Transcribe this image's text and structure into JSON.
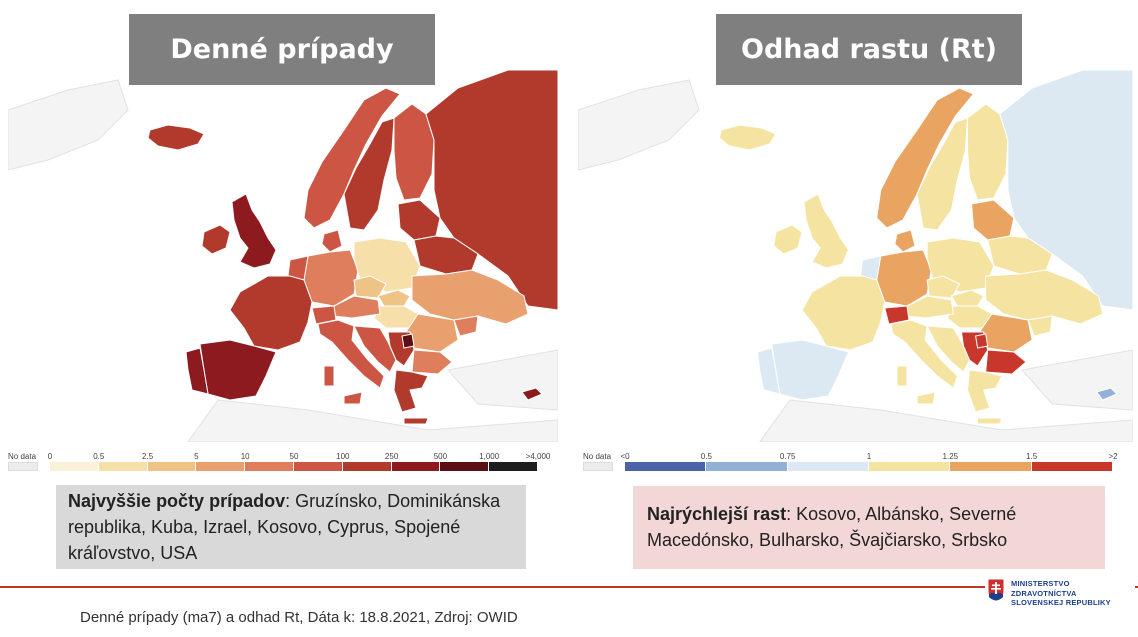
{
  "panels": {
    "left_title": "Denné prípady",
    "right_title": "Odhad rastu (Rt)"
  },
  "colors": {
    "no_data": "#ececec",
    "border": "#ffffff",
    "background_land": "#f4f4f4",
    "daily_cases_scale": [
      "#fbf1d9",
      "#f6dfa9",
      "#efc285",
      "#e7a06e",
      "#de7e5d",
      "#cc5643",
      "#b23a2c",
      "#8c1a1f",
      "#5c0f13",
      "#1e1e1e"
    ],
    "rt_scale": [
      "#4c63a8",
      "#93b0d6",
      "#dce9f3",
      "#f5e4a1",
      "#e9a462",
      "#c9362c"
    ]
  },
  "legend_left": {
    "no_data": "No data",
    "ticks": [
      "0",
      "0.5",
      "2.5",
      "5",
      "10",
      "50",
      "100",
      "250",
      "500",
      "1,000",
      ">4,000"
    ]
  },
  "legend_right": {
    "no_data": "No data",
    "ticks": [
      "<0",
      "0.5",
      "0.75",
      "1",
      "1.25",
      "1.5",
      ">2"
    ]
  },
  "callout_left": {
    "label": "Najvyššie počty prípadov",
    "text": ": Gruzínsko, Dominikánska republika, Kuba, Izrael, Kosovo, Cyprus, Spojené kráľovstvo, USA"
  },
  "callout_right": {
    "label": "Najrýchlejší rast",
    "text": ": Kosovo, Albánsko, Severné Macedónsko, Bulharsko, Švajčiarsko, Srbsko"
  },
  "footer": {
    "text": "Denné prípady (ma7) a odhad Rt, Dáta k: 18.8.2021, Zdroj: OWID"
  },
  "logo": {
    "line1": "MINISTERSTVO",
    "line2": "ZDRAVOTNÍCTVA",
    "line3": "SLOVENSKEJ REPUBLIKY"
  },
  "map_left_regions": [
    {
      "name": "Iceland",
      "color": "#b23a2c"
    },
    {
      "name": "Ireland",
      "color": "#b23a2c"
    },
    {
      "name": "United Kingdom",
      "color": "#8c1a1f"
    },
    {
      "name": "Norway",
      "color": "#cc5643"
    },
    {
      "name": "Sweden",
      "color": "#b23a2c"
    },
    {
      "name": "Finland",
      "color": "#cc5643"
    },
    {
      "name": "Russia",
      "color": "#b23a2c"
    },
    {
      "name": "Baltics",
      "color": "#b23a2c"
    },
    {
      "name": "Belarus",
      "color": "#b23a2c"
    },
    {
      "name": "Denmark",
      "color": "#cc5643"
    },
    {
      "name": "Germany",
      "color": "#de7e5d"
    },
    {
      "name": "Netherlands",
      "color": "#cc5643"
    },
    {
      "name": "France",
      "color": "#b23a2c"
    },
    {
      "name": "Spain",
      "color": "#8c1a1f"
    },
    {
      "name": "Portugal",
      "color": "#8c1a1f"
    },
    {
      "name": "Poland",
      "color": "#f6dfa9"
    },
    {
      "name": "Czechia",
      "color": "#efc285"
    },
    {
      "name": "Slovakia",
      "color": "#efc285"
    },
    {
      "name": "Hungary",
      "color": "#f6dfa9"
    },
    {
      "name": "Ukraine",
      "color": "#e7a06e"
    },
    {
      "name": "Romania",
      "color": "#e7a06e"
    },
    {
      "name": "Moldova",
      "color": "#de7e5d"
    },
    {
      "name": "Austria",
      "color": "#de7e5d"
    },
    {
      "name": "Switzerland",
      "color": "#cc5643"
    },
    {
      "name": "Italy",
      "color": "#cc5643"
    },
    {
      "name": "Balkans",
      "color": "#cc5643"
    },
    {
      "name": "Serbia",
      "color": "#b23a2c"
    },
    {
      "name": "Kosovo",
      "color": "#5c0f13"
    },
    {
      "name": "Bulgaria",
      "color": "#de7e5d"
    },
    {
      "name": "Greece",
      "color": "#b23a2c"
    },
    {
      "name": "Cyprus",
      "color": "#8c1a1f"
    }
  ],
  "map_right_regions": [
    {
      "name": "Iceland",
      "color": "#f5e4a1"
    },
    {
      "name": "Ireland",
      "color": "#f5e4a1"
    },
    {
      "name": "United Kingdom",
      "color": "#f5e4a1"
    },
    {
      "name": "Norway",
      "color": "#e9a462"
    },
    {
      "name": "Sweden",
      "color": "#f5e4a1"
    },
    {
      "name": "Finland",
      "color": "#f5e4a1"
    },
    {
      "name": "Russia",
      "color": "#dce9f3"
    },
    {
      "name": "Baltics",
      "color": "#e9a462"
    },
    {
      "name": "Belarus",
      "color": "#f5e4a1"
    },
    {
      "name": "Denmark",
      "color": "#e9a462"
    },
    {
      "name": "Germany",
      "color": "#e9a462"
    },
    {
      "name": "Netherlands",
      "color": "#dce9f3"
    },
    {
      "name": "France",
      "color": "#f5e4a1"
    },
    {
      "name": "Spain",
      "color": "#dce9f3"
    },
    {
      "name": "Portugal",
      "color": "#dce9f3"
    },
    {
      "name": "Poland",
      "color": "#f5e4a1"
    },
    {
      "name": "Czechia",
      "color": "#f5e4a1"
    },
    {
      "name": "Slovakia",
      "color": "#f5e4a1"
    },
    {
      "name": "Hungary",
      "color": "#f5e4a1"
    },
    {
      "name": "Ukraine",
      "color": "#f5e4a1"
    },
    {
      "name": "Romania",
      "color": "#e9a462"
    },
    {
      "name": "Moldova",
      "color": "#f5e4a1"
    },
    {
      "name": "Austria",
      "color": "#f5e4a1"
    },
    {
      "name": "Switzerland",
      "color": "#c9362c"
    },
    {
      "name": "Italy",
      "color": "#f5e4a1"
    },
    {
      "name": "Balkans",
      "color": "#f5e4a1"
    },
    {
      "name": "Serbia",
      "color": "#c9362c"
    },
    {
      "name": "Kosovo",
      "color": "#c9362c"
    },
    {
      "name": "Bulgaria",
      "color": "#c9362c"
    },
    {
      "name": "Greece",
      "color": "#f5e4a1"
    },
    {
      "name": "Cyprus",
      "color": "#93b0d6"
    }
  ]
}
